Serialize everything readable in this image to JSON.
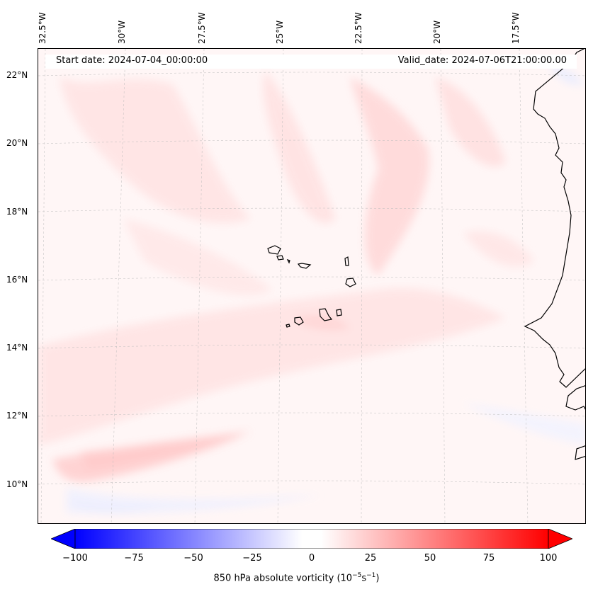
{
  "map": {
    "start_label": "Start date: 2024-07-04_00:00:00",
    "valid_label": "Valid_date: 2024-07-06T21:00:00.00",
    "lon_labels": [
      "32.5°W",
      "30°W",
      "27.5°W",
      "25°W",
      "22.5°W",
      "20°W",
      "17.5°W"
    ],
    "lat_labels": [
      "22°N",
      "20°N",
      "18°N",
      "16°N",
      "14°N",
      "12°N",
      "10°N"
    ]
  },
  "colorbar": {
    "label_prefix": "850 hPa absolute vorticity (10",
    "label_exp1": "−5",
    "label_mid": "s",
    "label_exp2": "−1",
    "label_suffix": ")",
    "ticks": [
      "−100",
      "−75",
      "−50",
      "−25",
      "0",
      "25",
      "50",
      "75",
      "100"
    ],
    "low_color": "#0000ff",
    "mid_color": "#ffffff",
    "high_color": "#ff0000"
  }
}
